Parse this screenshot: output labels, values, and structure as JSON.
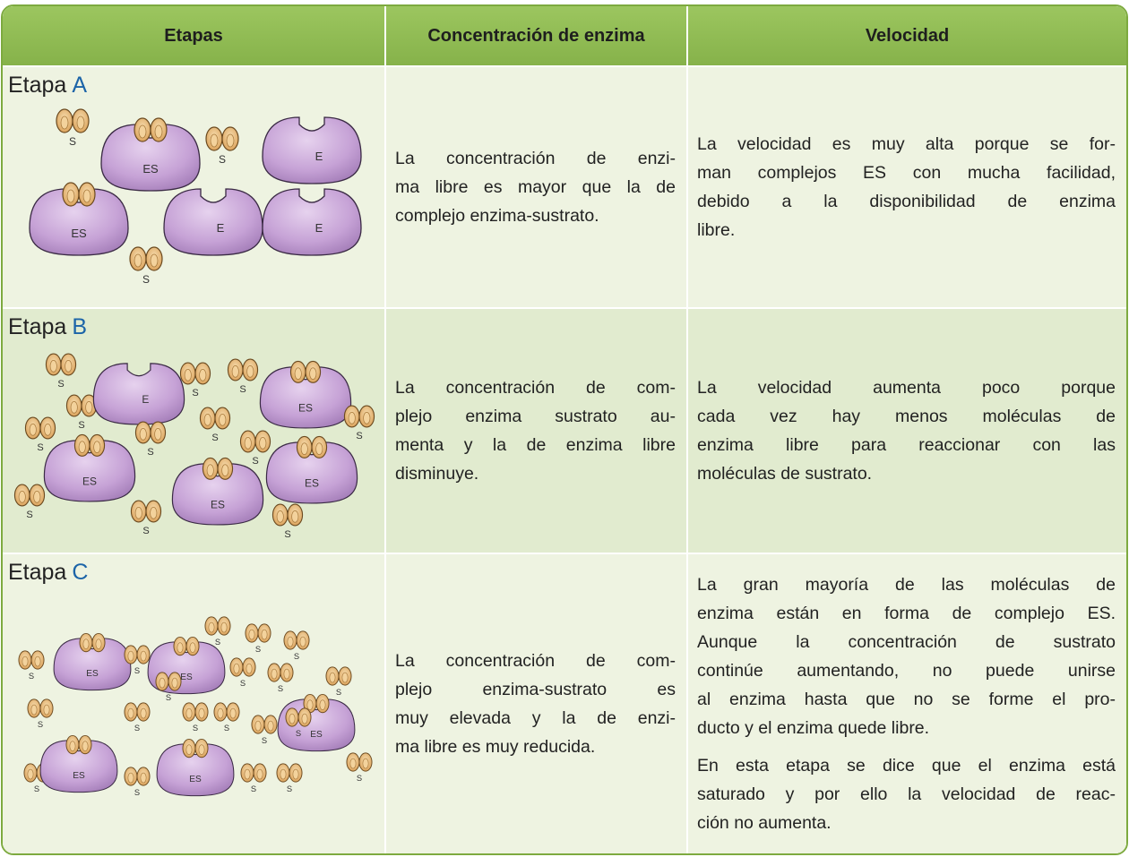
{
  "table": {
    "headers": [
      "Etapas",
      "Concentración de enzima",
      "Velocidad"
    ],
    "rows": [
      {
        "stage": "Etapa",
        "letter": "A",
        "molecules": [
          "S",
          "ES",
          "S",
          "E",
          "ES",
          "S",
          "E",
          "E"
        ],
        "concentration": [
          "La concentración de enzi-",
          "ma libre es mayor que la de",
          "complejo enzima-sustrato."
        ],
        "speed": [
          [
            "La velocidad es muy alta porque se for-",
            "man complejos ES con mucha facilidad,",
            "debido a la disponibilidad de enzima",
            "libre."
          ]
        ]
      },
      {
        "stage": "Etapa",
        "letter": "B",
        "molecules": [
          "S",
          "S",
          "E",
          "S",
          "S",
          "ES",
          "S",
          "S",
          "S",
          "S",
          "ES",
          "S",
          "ES",
          "ES",
          "S",
          "S",
          "S"
        ],
        "concentration": [
          "La concentración de com-",
          "plejo enzima sustrato au-",
          "menta y la de enzima libre",
          "disminuye."
        ],
        "speed": [
          [
            "La velocidad aumenta poco porque",
            "cada vez hay menos moléculas de",
            "enzima libre para reaccionar con las",
            "moléculas de sustrato."
          ]
        ]
      },
      {
        "stage": "Etapa",
        "letter": "C",
        "molecules": [
          "S",
          "ES",
          "S",
          "ES",
          "S",
          "S",
          "S",
          "S",
          "S",
          "S",
          "S",
          "S",
          "ES",
          "S",
          "S",
          "S",
          "S",
          "S",
          "ES",
          "ES",
          "S",
          "S",
          "S",
          "S",
          "S"
        ],
        "concentration": [
          "La concentración de com-",
          "plejo enzima-sustrato es",
          "muy elevada y la de enzi-",
          "ma libre es muy reducida."
        ],
        "speed": [
          [
            "La gran mayoría de las moléculas de",
            "enzima están en forma de complejo ES.",
            "Aunque la concentración de sustrato",
            "continúe aumentando, no puede unirse",
            "al enzima hasta que no se forme el pro-",
            "ducto y el enzima quede libre."
          ],
          [
            "En esta etapa se dice que el enzima está",
            "saturado y por ello la velocidad de reac-",
            "ción no aumenta."
          ]
        ]
      }
    ]
  }
}
